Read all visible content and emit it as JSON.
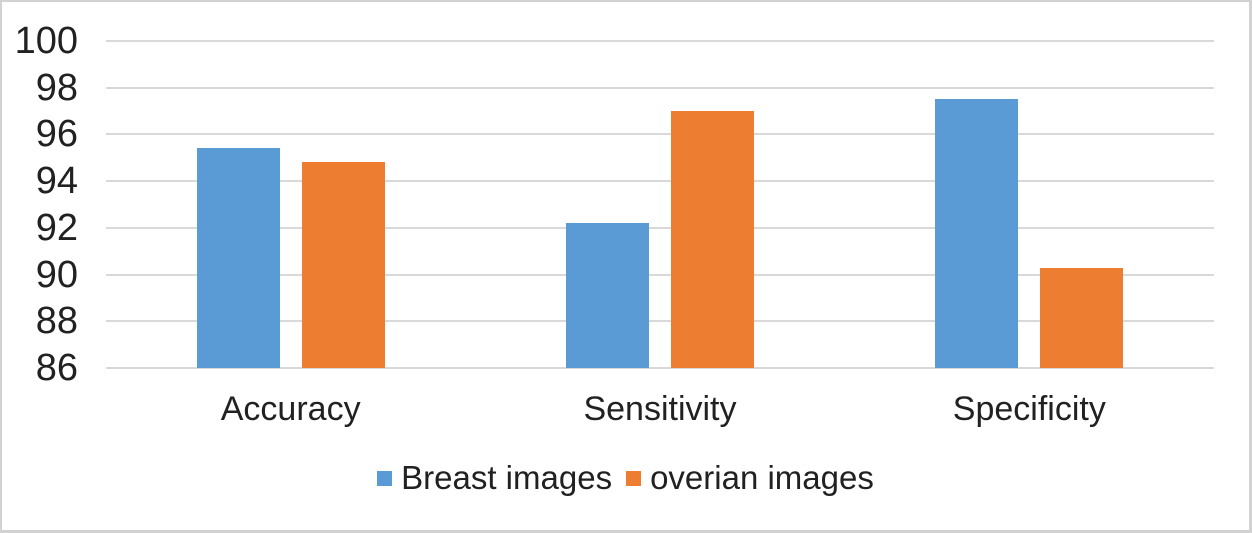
{
  "chart_data": {
    "type": "bar",
    "categories": [
      "Accuracy",
      "Sensitivity",
      "Specificity"
    ],
    "series": [
      {
        "name": "Breast images",
        "color": "#5B9BD5",
        "values": [
          95.4,
          92.2,
          97.5
        ]
      },
      {
        "name": "overian images",
        "color": "#ED7D31",
        "values": [
          94.8,
          97.0,
          90.3
        ]
      }
    ],
    "title": "",
    "xlabel": "",
    "ylabel": "",
    "ylim": [
      86,
      100
    ],
    "yticks": [
      100,
      98,
      96,
      94,
      92,
      90,
      88,
      86
    ],
    "grid": true,
    "legend_position": "bottom"
  },
  "figure": {
    "background": "#ffffff",
    "border_color": "#d2d2d2",
    "gridline_color": "#d9d9d9",
    "text_color": "#212121"
  }
}
